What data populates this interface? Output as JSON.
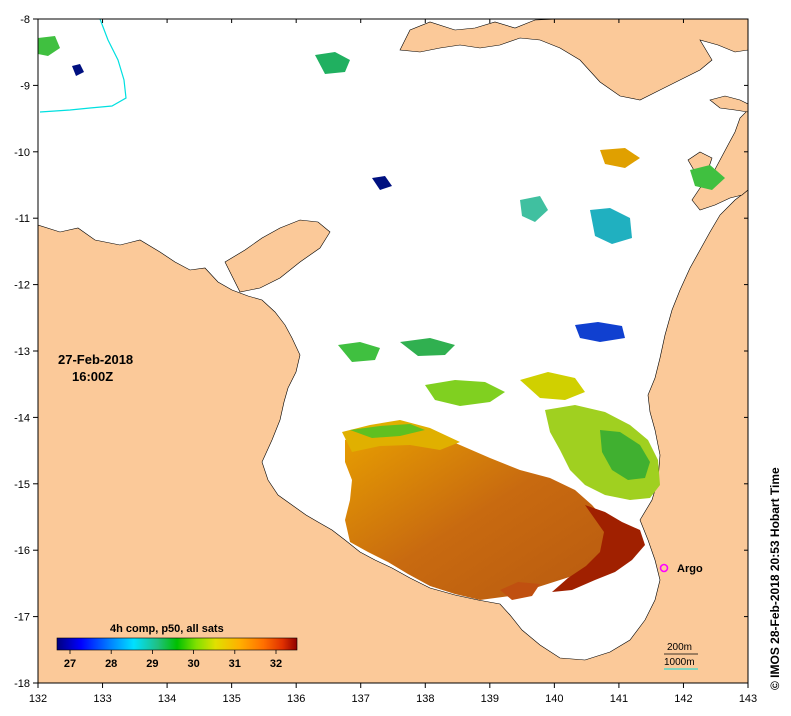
{
  "map": {
    "title_date": "27-Feb-2018",
    "title_time": "16:00Z",
    "credit": "© IMOS 28-Feb-2018 20:53 Hobart Time",
    "x_axis": {
      "ticks": [
        "132",
        "133",
        "134",
        "135",
        "136",
        "137",
        "138",
        "139",
        "140",
        "141",
        "142",
        "143"
      ]
    },
    "y_axis": {
      "ticks": [
        "-8",
        "-9",
        "-10",
        "-11",
        "-12",
        "-13",
        "-14",
        "-15",
        "-16",
        "-17",
        "-18"
      ]
    },
    "colorbar": {
      "title": "4h comp, p50, all sats",
      "ticks": [
        "27",
        "28",
        "29",
        "30",
        "31",
        "32"
      ],
      "colors": [
        "#00007f",
        "#0000ff",
        "#0080ff",
        "#00e0ff",
        "#20c080",
        "#00c000",
        "#80e000",
        "#e0e000",
        "#ffb000",
        "#ff7000",
        "#e03000",
        "#900000"
      ]
    },
    "legend": {
      "argo_label": "Argo",
      "depth_200": "200m",
      "depth_1000": "1000m"
    },
    "colors": {
      "land": "#fbc999",
      "ocean": "#ffffff",
      "argo": "#ff00ff",
      "contour": "#00e0e0"
    }
  }
}
